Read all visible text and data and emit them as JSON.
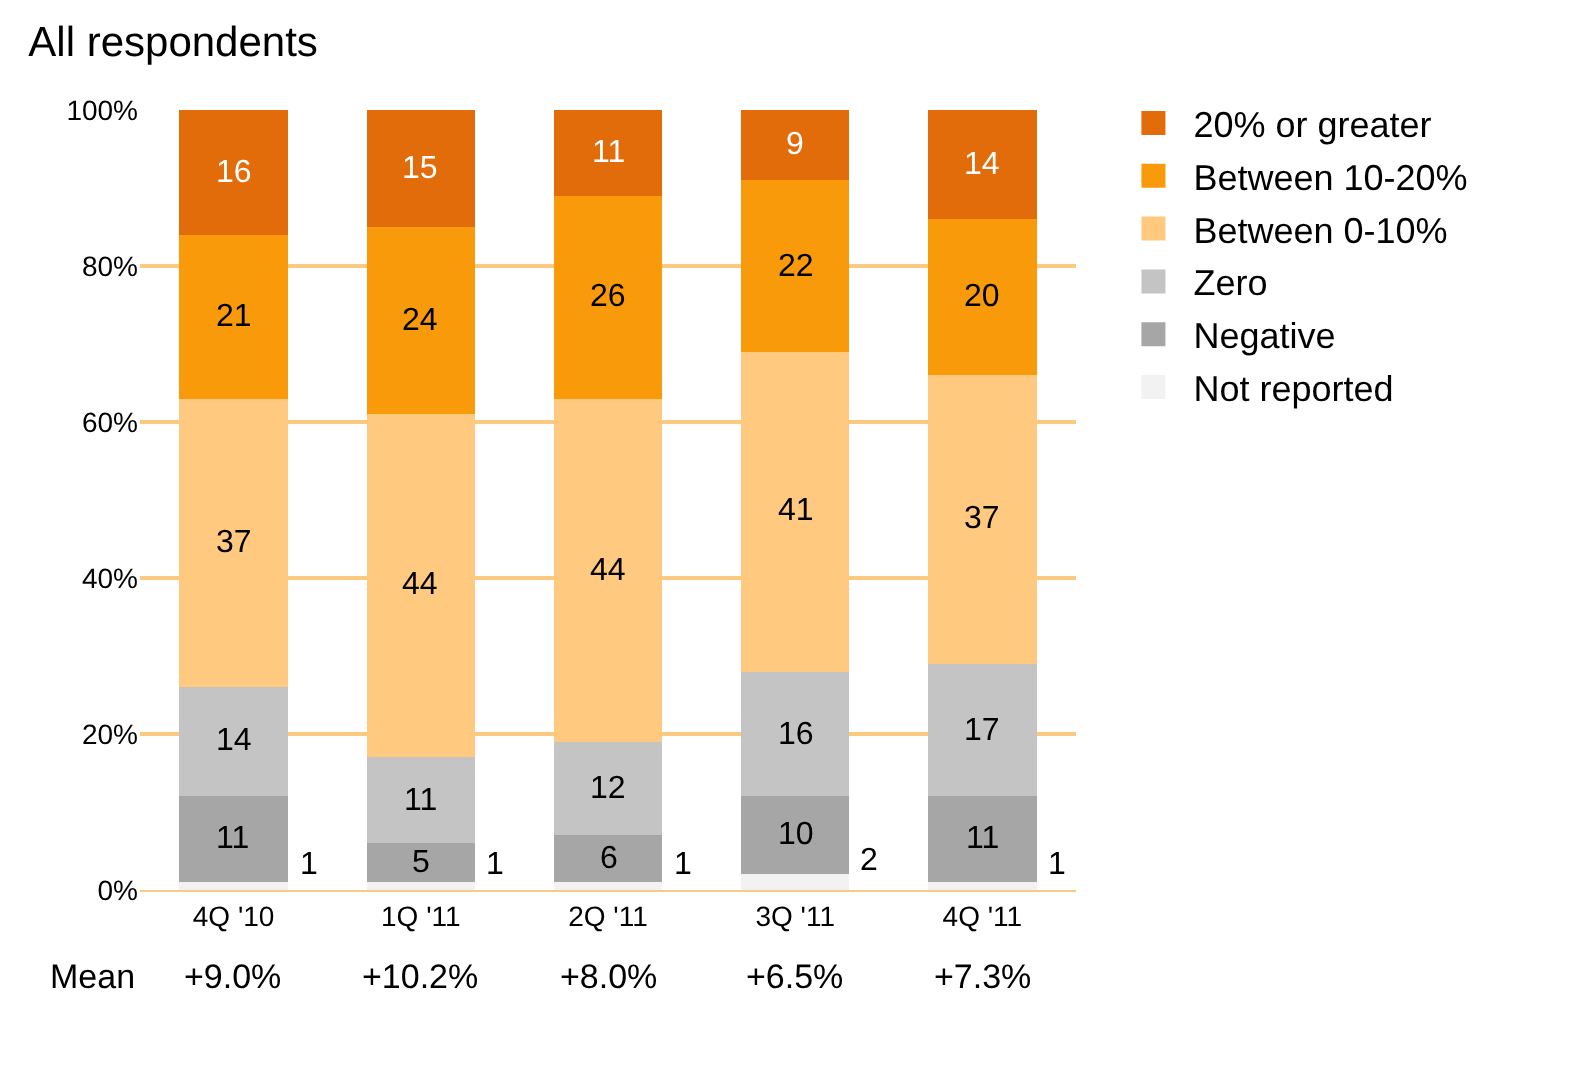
{
  "chart_data": {
    "type": "bar",
    "title": "All respondents",
    "stacked": true,
    "data_labels": true,
    "grid": "y",
    "legend": "top right",
    "categories": [
      "4Q '10",
      "1Q '11",
      "2Q '11",
      "3Q '11",
      "4Q '11"
    ],
    "series": [
      {
        "name": "Not reported",
        "color": "#f2f2f2",
        "values": [
          1,
          1,
          1,
          2,
          1
        ]
      },
      {
        "name": "Negative",
        "color": "#a6a6a6",
        "values": [
          11,
          5,
          6,
          10,
          11
        ]
      },
      {
        "name": "Zero",
        "color": "#c4c4c4",
        "values": [
          14,
          11,
          12,
          16,
          17
        ]
      },
      {
        "name": "Between 0-10%",
        "color": "#ffc97f",
        "values": [
          37,
          44,
          44,
          41,
          37
        ]
      },
      {
        "name": "Between 10-20%",
        "color": "#f99a0a",
        "values": [
          21,
          24,
          26,
          22,
          20
        ]
      },
      {
        "name": "20% or greater",
        "color": "#e26b0a",
        "values": [
          16,
          15,
          11,
          9,
          14
        ]
      }
    ],
    "ylim": [
      0,
      100
    ],
    "yticks": [
      {
        "value": 0,
        "label": "0%"
      },
      {
        "value": 20,
        "label": "20%"
      },
      {
        "value": 40,
        "label": "40%"
      },
      {
        "value": 60,
        "label": "60%"
      },
      {
        "value": 80,
        "label": "80%"
      },
      {
        "value": 100,
        "label": "100%"
      }
    ],
    "annotations": [
      "Mean",
      "+9.0%",
      "+10.2%",
      "+8.0%",
      "+6.5%",
      "+7.3%"
    ]
  }
}
